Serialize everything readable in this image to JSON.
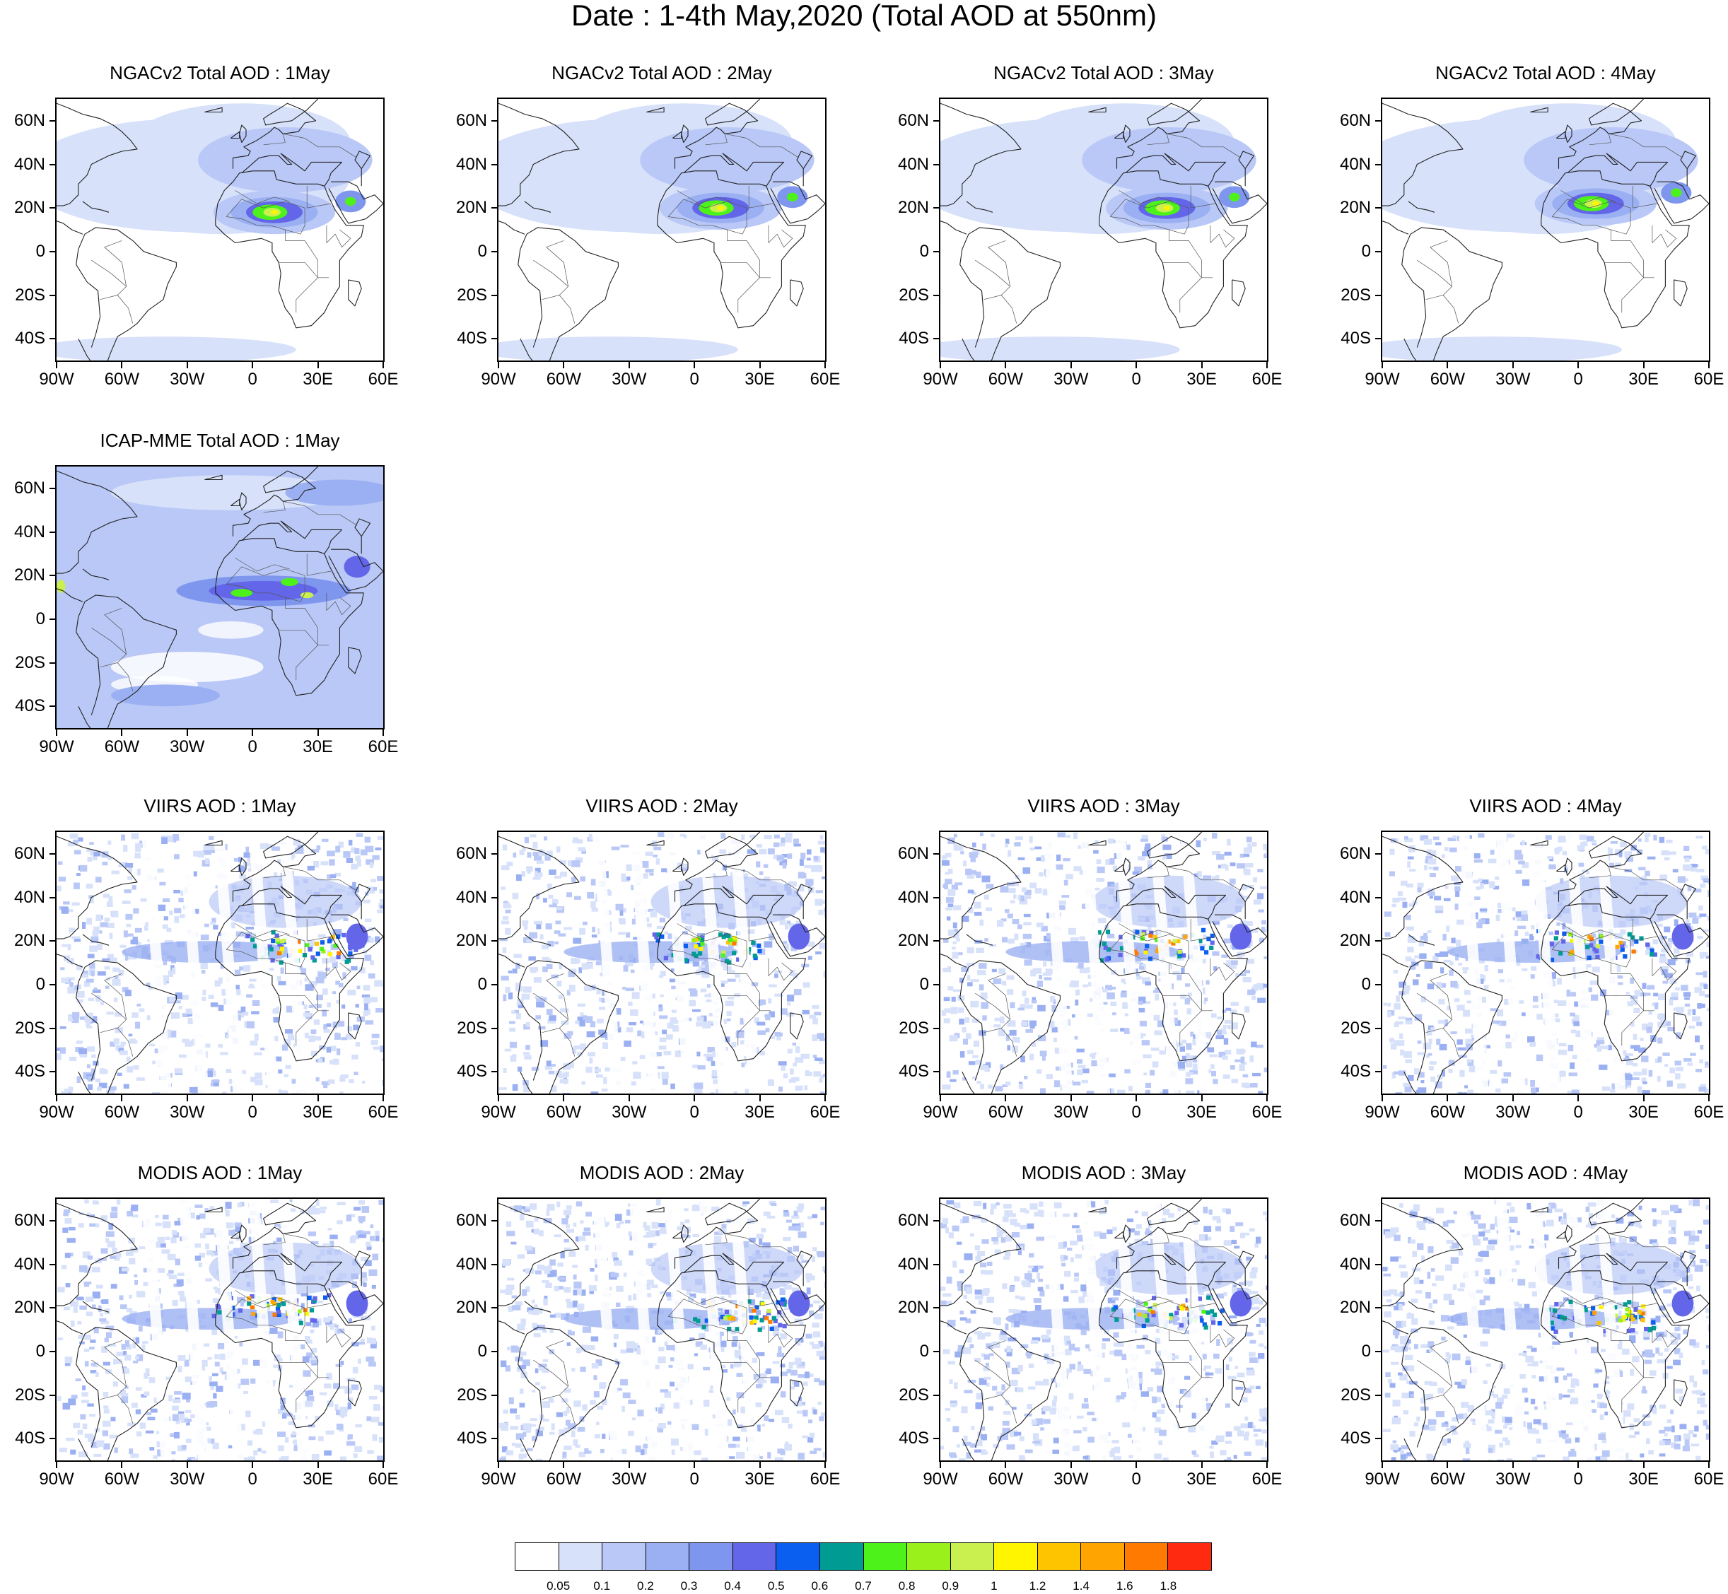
{
  "title": "Date : 1-4th May,2020 (Total AOD at 550nm)",
  "lat_ticks": [
    "60N",
    "40N",
    "20N",
    "0",
    "20S",
    "40S"
  ],
  "lon_ticks": [
    "90W",
    "60W",
    "30W",
    "0",
    "30E",
    "60E"
  ],
  "panels": [
    {
      "id": "ngac-1",
      "title": "NGACv2 Total AOD : 1May",
      "row": 0,
      "col": 0,
      "kind": "model",
      "plume_lon": 10,
      "plume_lat": 18
    },
    {
      "id": "ngac-2",
      "title": "NGACv2 Total AOD : 2May",
      "row": 0,
      "col": 1,
      "kind": "model",
      "plume_lon": 12,
      "plume_lat": 20
    },
    {
      "id": "ngac-3",
      "title": "NGACv2 Total AOD : 3May",
      "row": 0,
      "col": 2,
      "kind": "model",
      "plume_lon": 14,
      "plume_lat": 20
    },
    {
      "id": "ngac-4",
      "title": "NGACv2 Total AOD : 4May",
      "row": 0,
      "col": 3,
      "kind": "model",
      "plume_lon": 8,
      "plume_lat": 22
    },
    {
      "id": "icap-1",
      "title": "ICAP-MME Total AOD : 1May",
      "row": 1,
      "col": 0,
      "kind": "ensemble",
      "plume_lon": 5,
      "plume_lat": 13
    },
    {
      "id": "viirs-1",
      "title": "VIIRS AOD : 1May",
      "row": 2,
      "col": 0,
      "kind": "satellite",
      "plume_lon": 20,
      "plume_lat": 19
    },
    {
      "id": "viirs-2",
      "title": "VIIRS AOD : 2May",
      "row": 2,
      "col": 1,
      "kind": "satellite",
      "plume_lon": 5,
      "plume_lat": 19
    },
    {
      "id": "viirs-3",
      "title": "VIIRS AOD : 3May",
      "row": 2,
      "col": 2,
      "kind": "satellite",
      "plume_lon": 5,
      "plume_lat": 20
    },
    {
      "id": "viirs-4",
      "title": "VIIRS AOD : 4May",
      "row": 2,
      "col": 3,
      "kind": "satellite",
      "plume_lon": 5,
      "plume_lat": 20
    },
    {
      "id": "modis-1",
      "title": "MODIS AOD : 1May",
      "row": 3,
      "col": 0,
      "kind": "satellite",
      "plume_lon": 5,
      "plume_lat": 22
    },
    {
      "id": "modis-2",
      "title": "MODIS AOD : 2May",
      "row": 3,
      "col": 1,
      "kind": "satellite",
      "plume_lon": 15,
      "plume_lat": 19
    },
    {
      "id": "modis-3",
      "title": "MODIS AOD : 3May",
      "row": 3,
      "col": 2,
      "kind": "satellite",
      "plume_lon": 10,
      "plume_lat": 20
    },
    {
      "id": "modis-4",
      "title": "MODIS AOD : 4May",
      "row": 3,
      "col": 3,
      "kind": "satellite",
      "plume_lon": 10,
      "plume_lat": 18
    }
  ],
  "colorbar": {
    "colors": [
      "#ffffff",
      "#d7e1fa",
      "#b9c8f6",
      "#9bb0f2",
      "#7f96ef",
      "#6366e8",
      "#0a5ef0",
      "#009c94",
      "#4cf21a",
      "#9af01a",
      "#c9f04e",
      "#fff500",
      "#ffc400",
      "#ffa400",
      "#ff7a00",
      "#ff2a10"
    ],
    "labels": [
      "0.05",
      "0.1",
      "0.2",
      "0.3",
      "0.4",
      "0.5",
      "0.6",
      "0.7",
      "0.8",
      "0.9",
      "1",
      "1.2",
      "1.4",
      "1.6",
      "1.8"
    ]
  }
}
